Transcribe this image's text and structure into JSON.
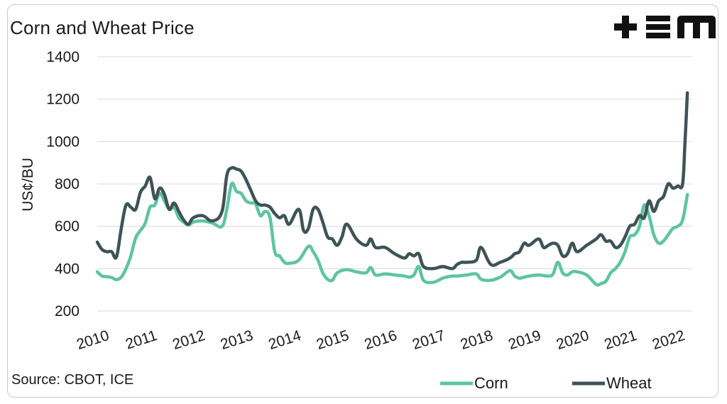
{
  "header": {
    "title": "Corn and Wheat Price",
    "logo_text": "+EM"
  },
  "footer": {
    "source": "Source: CBOT, ICE"
  },
  "colors": {
    "corn": "#5ec4a0",
    "wheat": "#3e5356",
    "grid": "#d9d9d9",
    "logo": "#111111"
  },
  "chart_data": {
    "type": "line",
    "title": "Corn and Wheat Price",
    "xlabel": "",
    "ylabel": "US¢/BU",
    "xlim": [
      2010,
      2022.4
    ],
    "ylim": [
      200,
      1400
    ],
    "yticks": [
      200,
      400,
      600,
      800,
      1000,
      1200,
      1400
    ],
    "xticks": [
      "2010",
      "2011",
      "2012",
      "2013",
      "2014",
      "2015",
      "2016",
      "2017",
      "2018",
      "2019",
      "2020",
      "2021",
      "2022"
    ],
    "grid": "horizontal",
    "legend": "bottom-right",
    "series": [
      {
        "name": "Corn",
        "x": [
          2010.0,
          2010.1,
          2010.2,
          2010.3,
          2010.4,
          2010.5,
          2010.6,
          2010.7,
          2010.8,
          2010.9,
          2011.0,
          2011.1,
          2011.2,
          2011.3,
          2011.4,
          2011.5,
          2011.6,
          2011.7,
          2011.8,
          2011.9,
          2012.0,
          2012.2,
          2012.4,
          2012.6,
          2012.7,
          2012.8,
          2012.9,
          2013.0,
          2013.1,
          2013.2,
          2013.3,
          2013.4,
          2013.5,
          2013.6,
          2013.7,
          2013.8,
          2013.9,
          2014.0,
          2014.2,
          2014.4,
          2014.5,
          2014.6,
          2014.7,
          2014.8,
          2014.9,
          2015.0,
          2015.2,
          2015.4,
          2015.6,
          2015.7,
          2015.8,
          2016.0,
          2016.2,
          2016.4,
          2016.5,
          2016.6,
          2016.7,
          2016.8,
          2017.0,
          2017.2,
          2017.4,
          2017.5,
          2017.7,
          2017.9,
          2018.0,
          2018.2,
          2018.4,
          2018.6,
          2018.7,
          2018.8,
          2018.9,
          2019.0,
          2019.2,
          2019.4,
          2019.5,
          2019.6,
          2019.7,
          2019.8,
          2019.9,
          2020.0,
          2020.2,
          2020.4,
          2020.5,
          2020.6,
          2020.7,
          2020.8,
          2020.9,
          2021.0,
          2021.1,
          2021.2,
          2021.3,
          2021.4,
          2021.5,
          2021.6,
          2021.7,
          2021.8,
          2021.9,
          2022.0,
          2022.1,
          2022.2,
          2022.3
        ],
        "values": [
          385,
          365,
          362,
          358,
          348,
          360,
          400,
          460,
          545,
          580,
          615,
          690,
          700,
          755,
          720,
          680,
          690,
          640,
          620,
          605,
          620,
          625,
          615,
          600,
          680,
          800,
          765,
          755,
          720,
          710,
          705,
          650,
          670,
          640,
          480,
          460,
          430,
          425,
          440,
          505,
          480,
          440,
          380,
          350,
          345,
          380,
          395,
          385,
          380,
          405,
          370,
          375,
          370,
          365,
          360,
          370,
          410,
          345,
          335,
          355,
          365,
          365,
          370,
          375,
          350,
          345,
          360,
          390,
          365,
          355,
          360,
          365,
          370,
          365,
          375,
          430,
          380,
          370,
          385,
          385,
          370,
          325,
          330,
          340,
          380,
          400,
          430,
          480,
          550,
          560,
          600,
          700,
          650,
          560,
          520,
          530,
          560,
          590,
          600,
          630,
          750
        ]
      },
      {
        "name": "Wheat",
        "x": [
          2010.0,
          2010.1,
          2010.2,
          2010.3,
          2010.4,
          2010.5,
          2010.6,
          2010.7,
          2010.8,
          2010.9,
          2011.0,
          2011.1,
          2011.2,
          2011.3,
          2011.4,
          2011.5,
          2011.6,
          2011.7,
          2011.8,
          2011.9,
          2012.0,
          2012.2,
          2012.4,
          2012.6,
          2012.7,
          2012.8,
          2012.9,
          2013.0,
          2013.1,
          2013.2,
          2013.3,
          2013.4,
          2013.5,
          2013.6,
          2013.7,
          2013.8,
          2013.9,
          2014.0,
          2014.2,
          2014.3,
          2014.4,
          2014.5,
          2014.6,
          2014.7,
          2014.8,
          2014.9,
          2015.0,
          2015.1,
          2015.2,
          2015.4,
          2015.6,
          2015.7,
          2015.8,
          2016.0,
          2016.2,
          2016.4,
          2016.5,
          2016.6,
          2016.7,
          2016.8,
          2017.0,
          2017.2,
          2017.4,
          2017.5,
          2017.6,
          2017.7,
          2017.9,
          2018.0,
          2018.2,
          2018.4,
          2018.6,
          2018.7,
          2018.8,
          2018.9,
          2019.0,
          2019.2,
          2019.3,
          2019.4,
          2019.5,
          2019.6,
          2019.7,
          2019.8,
          2019.9,
          2020.0,
          2020.2,
          2020.4,
          2020.5,
          2020.6,
          2020.7,
          2020.8,
          2020.9,
          2021.0,
          2021.1,
          2021.2,
          2021.3,
          2021.4,
          2021.5,
          2021.6,
          2021.7,
          2021.8,
          2021.9,
          2022.0,
          2022.1,
          2022.2,
          2022.25,
          2022.3
        ],
        "values": [
          525,
          490,
          480,
          480,
          455,
          590,
          700,
          690,
          680,
          760,
          790,
          830,
          730,
          780,
          750,
          680,
          710,
          670,
          630,
          610,
          640,
          650,
          625,
          670,
          840,
          875,
          870,
          860,
          820,
          770,
          720,
          700,
          700,
          690,
          660,
          640,
          650,
          610,
          680,
          580,
          590,
          680,
          680,
          620,
          550,
          540,
          510,
          550,
          610,
          540,
          510,
          540,
          500,
          500,
          470,
          450,
          470,
          460,
          470,
          410,
          400,
          410,
          400,
          420,
          430,
          430,
          440,
          500,
          420,
          430,
          450,
          470,
          480,
          520,
          510,
          540,
          500,
          510,
          520,
          510,
          460,
          470,
          520,
          480,
          510,
          540,
          560,
          530,
          530,
          500,
          510,
          550,
          600,
          610,
          650,
          640,
          720,
          670,
          720,
          740,
          800,
          780,
          790,
          800,
          1000,
          1230
        ]
      }
    ]
  }
}
